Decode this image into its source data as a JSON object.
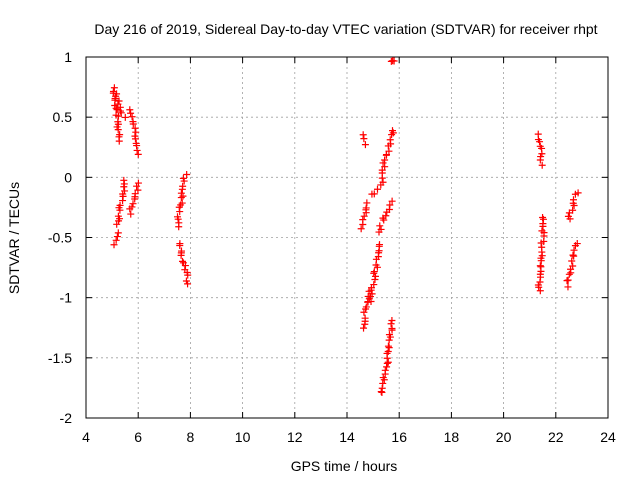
{
  "chart_data": {
    "type": "scatter",
    "title": "Day 216 of 2019, Sidereal Day-to-day VTEC variation (SDTVAR) for receiver rhpt",
    "xlabel": "GPS time / hours",
    "ylabel": "SDTVAR / TECUs",
    "xlim": [
      4,
      24
    ],
    "ylim": [
      -2,
      1
    ],
    "xticks": [
      4,
      6,
      8,
      10,
      12,
      14,
      16,
      18,
      20,
      22,
      24
    ],
    "xtick_labels": [
      "4",
      "6",
      "8",
      "10",
      "12",
      "14",
      "16",
      "18",
      "20",
      "22",
      "24"
    ],
    "yticks": [
      -2,
      -1.5,
      -1,
      -0.5,
      0,
      0.5,
      1
    ],
    "ytick_labels": [
      "-2",
      "-1.5",
      "-1",
      "-0.5",
      "0",
      "0.5",
      "1"
    ],
    "grid": true,
    "marker": "+",
    "color": "#ff0000",
    "series": [
      {
        "name": "SDTVAR",
        "segments": [
          {
            "x": [
              5.05,
              5.3
            ],
            "y": [
              0.75,
              0.3
            ]
          },
          {
            "x": [
              5.15,
              5.45
            ],
            "y": [
              0.7,
              0.5
            ]
          },
          {
            "x": [
              5.05,
              5.2
            ],
            "y": [
              -0.55,
              -0.45
            ]
          },
          {
            "x": [
              5.2,
              5.5
            ],
            "y": [
              -0.4,
              -0.02
            ]
          },
          {
            "x": [
              5.7,
              6.0
            ],
            "y": [
              0.55,
              0.2
            ]
          },
          {
            "x": [
              5.7,
              6.0
            ],
            "y": [
              -0.3,
              -0.05
            ]
          },
          {
            "x": [
              7.5,
              7.8
            ],
            "y": [
              -0.4,
              0.02
            ]
          },
          {
            "x": [
              7.6,
              7.9
            ],
            "y": [
              -0.55,
              -0.88
            ]
          },
          {
            "x": [
              14.6,
              14.75
            ],
            "y": [
              0.35,
              0.27
            ]
          },
          {
            "x": [
              14.55,
              14.8
            ],
            "y": [
              -0.42,
              -0.22
            ]
          },
          {
            "x": [
              14.6,
              14.85
            ],
            "y": [
              -1.25,
              -0.95
            ]
          },
          {
            "x": [
              14.85,
              15.3
            ],
            "y": [
              -1.05,
              -0.55
            ]
          },
          {
            "x": [
              15.0,
              15.35
            ],
            "y": [
              -0.15,
              -0.05
            ]
          },
          {
            "x": [
              15.3,
              15.75
            ],
            "y": [
              0.0,
              0.4
            ]
          },
          {
            "x": [
              15.2,
              15.7
            ],
            "y": [
              -0.45,
              -0.2
            ]
          },
          {
            "x": [
              15.35,
              15.75
            ],
            "y": [
              -1.8,
              -1.2
            ]
          },
          {
            "x": [
              15.75,
              15.8
            ],
            "y": [
              0.96,
              0.98
            ]
          },
          {
            "x": [
              21.35,
              21.45
            ],
            "y": [
              0.35,
              0.11
            ]
          },
          {
            "x": [
              21.35,
              21.55
            ],
            "y": [
              -0.95,
              -0.33
            ]
          },
          {
            "x": [
              22.45,
              22.8
            ],
            "y": [
              -0.9,
              -0.55
            ]
          },
          {
            "x": [
              22.5,
              22.8
            ],
            "y": [
              -0.35,
              -0.12
            ]
          }
        ]
      }
    ]
  }
}
